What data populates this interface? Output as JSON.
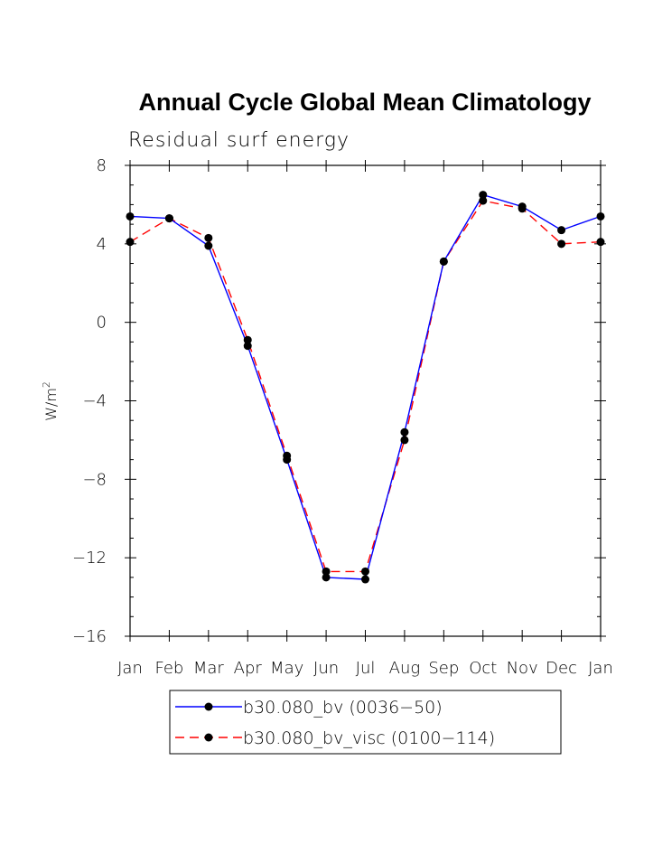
{
  "chart_data": {
    "type": "line",
    "title": "Annual Cycle Global Mean Climatology",
    "subtitle": "Residual surf energy",
    "xlabel": "",
    "ylabel": "W/m",
    "ylabel_superscript": "2",
    "categories": [
      "Jan",
      "Feb",
      "Mar",
      "Apr",
      "May",
      "Jun",
      "Jul",
      "Aug",
      "Sep",
      "Oct",
      "Nov",
      "Dec",
      "Jan"
    ],
    "ylim": [
      -16,
      8
    ],
    "yticks": [
      8,
      4,
      0,
      -4,
      -8,
      -12,
      -16
    ],
    "ytick_labels": [
      "8",
      "4",
      "0",
      "−4",
      "−8",
      "−12",
      "−16"
    ],
    "series": [
      {
        "name": "b30.080_bv (0036−50)",
        "color": "#0000ff",
        "dash": "solid",
        "values": [
          5.4,
          5.3,
          3.9,
          -1.2,
          -7.0,
          -13.0,
          -13.1,
          -5.6,
          3.1,
          6.5,
          5.9,
          4.7,
          5.4
        ]
      },
      {
        "name": "b30.080_bv_visc (0100−114)",
        "color": "#ff0000",
        "dash": "dashed",
        "values": [
          4.1,
          5.3,
          4.3,
          -0.9,
          -6.8,
          -12.7,
          -12.7,
          -6.0,
          3.1,
          6.2,
          5.8,
          4.0,
          4.1
        ]
      }
    ]
  }
}
